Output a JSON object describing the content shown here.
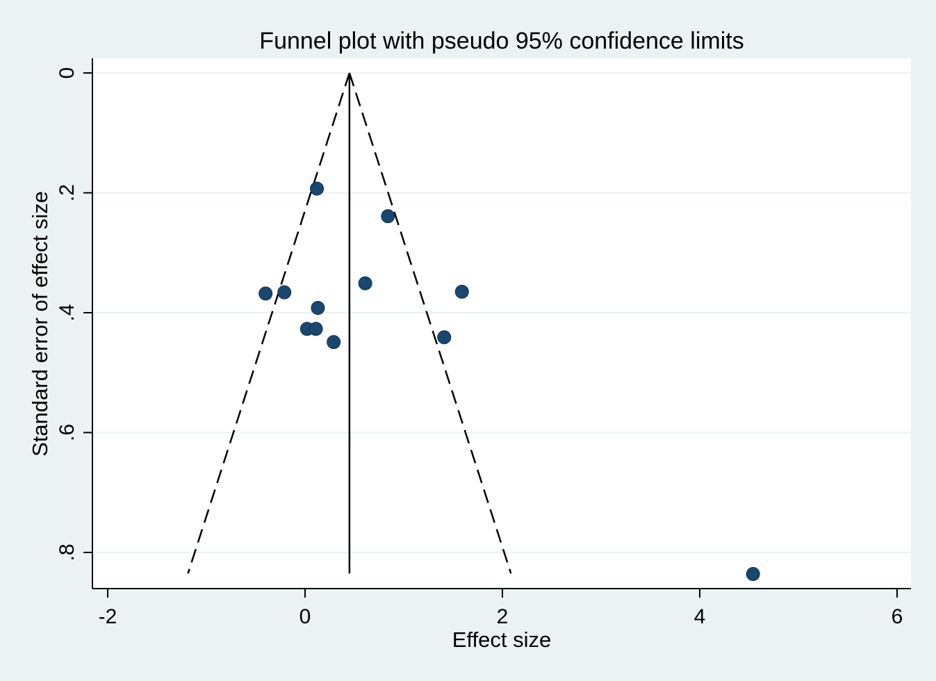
{
  "chart_data": {
    "type": "scatter",
    "title": "Funnel plot with pseudo 95% confidence limits",
    "xlabel": "Effect size",
    "ylabel": "Standard error of effect size",
    "xlim": [
      -2.15,
      6.15
    ],
    "ylim": [
      0,
      0.86
    ],
    "y_reversed": true,
    "x_ticks": [
      -2,
      0,
      2,
      4,
      6
    ],
    "x_tick_labels": [
      "-2",
      "0",
      "2",
      "4",
      "6"
    ],
    "y_ticks": [
      0,
      0.2,
      0.4,
      0.6,
      0.8
    ],
    "y_tick_labels": [
      "0",
      ".2",
      ".4",
      ".6",
      ".8"
    ],
    "grid": "horizontal",
    "pooled_effect": 0.45,
    "funnel_se_max": 0.835,
    "points": [
      {
        "x": 0.12,
        "y": 0.193
      },
      {
        "x": 0.84,
        "y": 0.239
      },
      {
        "x": 0.61,
        "y": 0.351
      },
      {
        "x": 1.59,
        "y": 0.365
      },
      {
        "x": -0.4,
        "y": 0.368
      },
      {
        "x": -0.21,
        "y": 0.366
      },
      {
        "x": 0.13,
        "y": 0.392
      },
      {
        "x": 0.02,
        "y": 0.427
      },
      {
        "x": 0.11,
        "y": 0.427
      },
      {
        "x": 0.29,
        "y": 0.449
      },
      {
        "x": 1.41,
        "y": 0.441
      },
      {
        "x": 4.54,
        "y": 0.836
      }
    ],
    "colors": {
      "background": "#eaf2f3",
      "plot_area": "#ffffff",
      "gridline": "#eaf2f3",
      "marker": "#1a476f",
      "lines": "#000000"
    }
  }
}
